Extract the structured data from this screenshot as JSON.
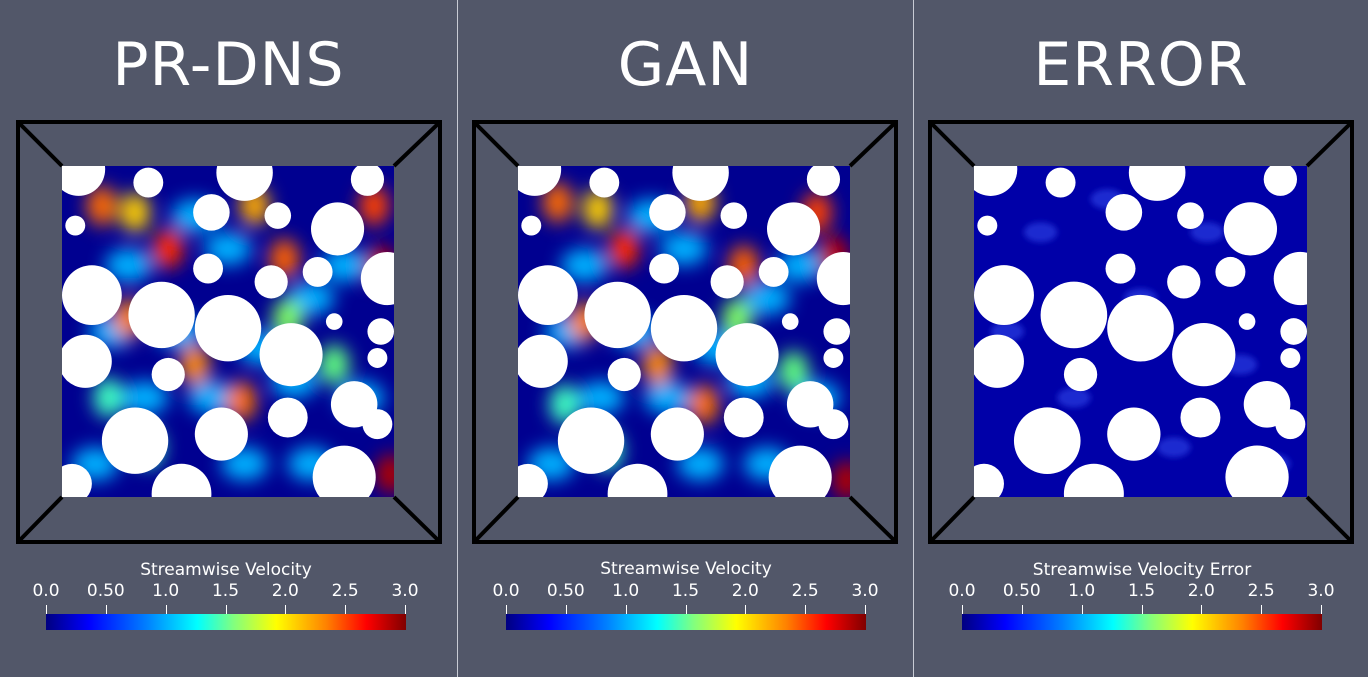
{
  "panels": [
    {
      "title": "PR-DNS",
      "legend_title": "Streamwise Velocity",
      "field": "prdns"
    },
    {
      "title": "GAN",
      "legend_title": "Streamwise Velocity",
      "field": "gan"
    },
    {
      "title": "ERROR",
      "legend_title": "Streamwise Velocity Error",
      "field": "error"
    }
  ],
  "colorbar": {
    "ticks": [
      "0.0",
      "0.50",
      "1.0",
      "1.5",
      "2.0",
      "2.5",
      "3.0"
    ],
    "range": [
      0.0,
      3.0
    ],
    "colormap": "jet"
  },
  "colors": {
    "background": "#525769",
    "particle": "#ffffff",
    "frame": "#000000",
    "low": "#00008b",
    "high": "#8b0000"
  }
}
